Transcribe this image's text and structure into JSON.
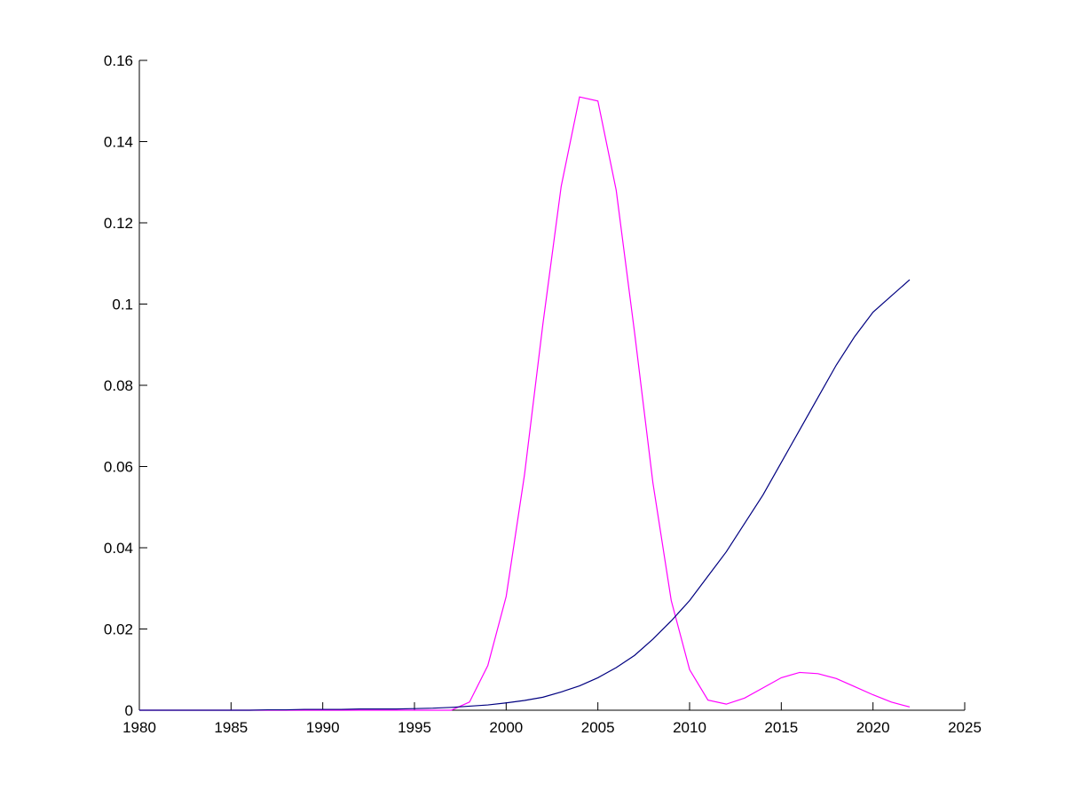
{
  "chart_data": {
    "type": "line",
    "x": [
      1980,
      1981,
      1982,
      1983,
      1984,
      1985,
      1986,
      1987,
      1988,
      1989,
      1990,
      1991,
      1992,
      1993,
      1994,
      1995,
      1996,
      1997,
      1998,
      1999,
      2000,
      2001,
      2002,
      2003,
      2004,
      2005,
      2006,
      2007,
      2008,
      2009,
      2010,
      2011,
      2012,
      2013,
      2014,
      2015,
      2016,
      2017,
      2018,
      2019,
      2020,
      2021,
      2022
    ],
    "series": [
      {
        "color": "#ff00ff",
        "values": [
          0,
          0,
          0,
          0,
          0,
          0,
          0,
          0,
          0,
          0,
          0,
          0,
          0,
          0,
          0,
          0,
          0,
          0,
          0.002,
          0.011,
          0.028,
          0.058,
          0.095,
          0.129,
          0.151,
          0.15,
          0.128,
          0.093,
          0.056,
          0.027,
          0.01,
          0.0025,
          0.0015,
          0.003,
          0.0055,
          0.008,
          0.0093,
          0.009,
          0.0078,
          0.0058,
          0.0038,
          0.002,
          0.0008
        ]
      },
      {
        "color": "#000080",
        "values": [
          0,
          0,
          0,
          0,
          0,
          0,
          0,
          0.0001,
          0.0001,
          0.0002,
          0.0002,
          0.0002,
          0.0003,
          0.0003,
          0.0003,
          0.0004,
          0.0005,
          0.0007,
          0.001,
          0.0013,
          0.0018,
          0.0024,
          0.0032,
          0.0045,
          0.006,
          0.008,
          0.0105,
          0.0135,
          0.0175,
          0.022,
          0.027,
          0.033,
          0.039,
          0.046,
          0.053,
          0.061,
          0.069,
          0.077,
          0.085,
          0.092,
          0.098,
          0.102,
          0.106
        ]
      }
    ],
    "xlim": [
      1980,
      2025
    ],
    "xticks": [
      1980,
      1985,
      1990,
      1995,
      2000,
      2005,
      2010,
      2015,
      2020,
      2025
    ],
    "ylim": [
      0,
      0.16
    ],
    "yticks": [
      0,
      0.02,
      0.04,
      0.06,
      0.08,
      0.1,
      0.12,
      0.14,
      0.16
    ]
  }
}
